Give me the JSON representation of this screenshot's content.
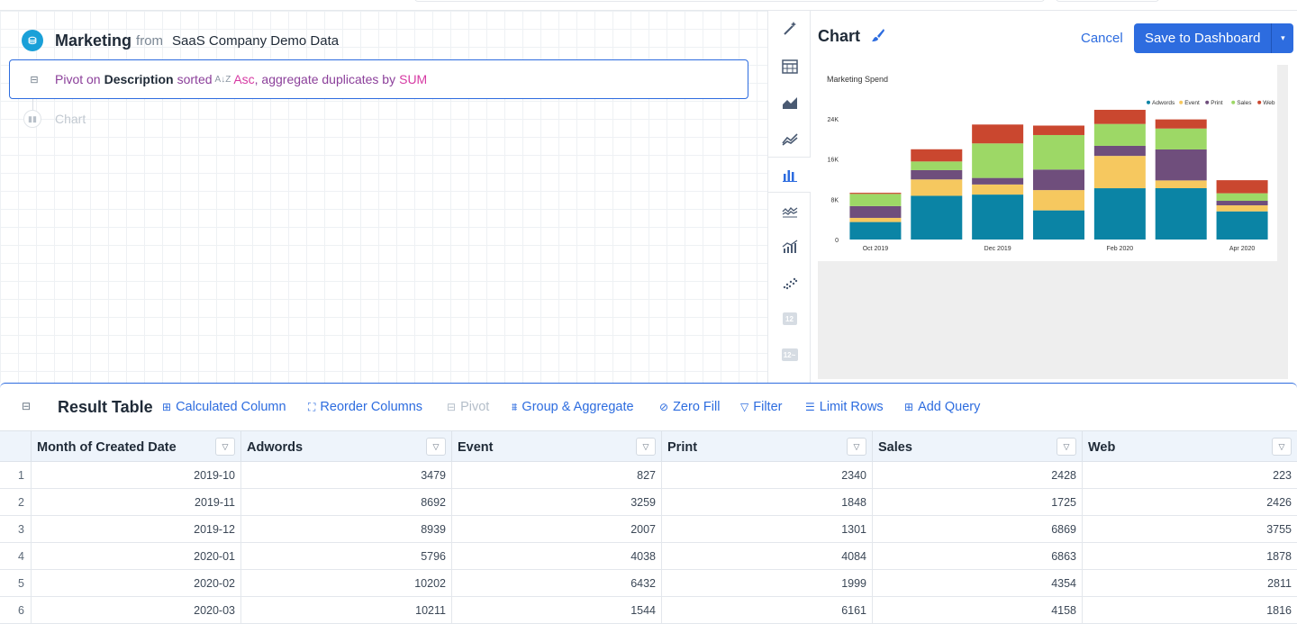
{
  "query": {
    "source_title": "Marketing",
    "source_from": "from",
    "source_name": "SaaS Company Demo Data",
    "pivot_step": {
      "verb": "Pivot on",
      "field": "Description",
      "sorted": "sorted",
      "sort_direction": "Asc",
      "aggregate_text": ", aggregate duplicates by",
      "aggregate_fn": "SUM"
    },
    "chart_step_label": "Chart"
  },
  "chart_types": [
    {
      "name": "magic-wand-icon",
      "active": false
    },
    {
      "name": "table-icon",
      "active": false
    },
    {
      "name": "area-chart-icon",
      "active": false
    },
    {
      "name": "line-chart-icon",
      "active": false
    },
    {
      "name": "bar-chart-icon",
      "active": true
    },
    {
      "name": "stacked-line-icon",
      "active": false
    },
    {
      "name": "combo-chart-icon",
      "active": false
    },
    {
      "name": "scatter-icon",
      "active": false
    },
    {
      "name": "number-icon",
      "label": "12",
      "active": false
    },
    {
      "name": "number-trend-icon",
      "label": "12",
      "active": false
    }
  ],
  "chart_panel": {
    "title": "Chart",
    "cancel_label": "Cancel",
    "save_label": "Save to Dashboard",
    "dropdown_glyph": "▾"
  },
  "chart_data": {
    "type": "bar",
    "stacked": true,
    "title": "Marketing Spend",
    "categories": [
      "Oct 2019",
      "Nov 2019",
      "Dec 2019",
      "Jan 2020",
      "Feb 2020",
      "Mar 2020",
      "Apr 2020"
    ],
    "tick_labels": [
      "Oct 2019",
      "",
      "Dec 2019",
      "",
      "Feb 2020",
      "",
      "Apr 2020"
    ],
    "y_ticks": [
      "0",
      "8K",
      "16K",
      "24K"
    ],
    "y_tick_values": [
      0,
      8000,
      16000,
      24000
    ],
    "ylim": [
      0,
      27000
    ],
    "legend_position": "top-right",
    "grid": false,
    "series": [
      {
        "name": "Adwords",
        "color": "#0b84a5",
        "values": [
          3479,
          8692,
          8939,
          5796,
          10202,
          10211,
          5600
        ]
      },
      {
        "name": "Event",
        "color": "#f6c85f",
        "values": [
          827,
          3259,
          2007,
          4038,
          6432,
          1544,
          1200
        ]
      },
      {
        "name": "Print",
        "color": "#6f4e7c",
        "values": [
          2340,
          1848,
          1301,
          4084,
          1999,
          6161,
          900
        ]
      },
      {
        "name": "Sales",
        "color": "#9dd866",
        "values": [
          2428,
          1725,
          6869,
          6863,
          4354,
          4158,
          1500
        ]
      },
      {
        "name": "Web",
        "color": "#ca472f",
        "values": [
          223,
          2426,
          3755,
          1878,
          2811,
          1816,
          2600
        ]
      }
    ]
  },
  "result": {
    "title": "Result Table",
    "tools": [
      {
        "name": "calculated-column-button",
        "icon": "⊞",
        "label": "Calculated Column",
        "disabled": false
      },
      {
        "name": "reorder-columns-button",
        "icon": "⛶",
        "label": "Reorder Columns",
        "disabled": false
      },
      {
        "name": "pivot-button",
        "icon": "⊟",
        "label": "Pivot",
        "disabled": true
      },
      {
        "name": "group-aggregate-button",
        "icon": "⩩",
        "label": "Group & Aggregate",
        "disabled": false
      },
      {
        "name": "zero-fill-button",
        "icon": "⊘",
        "label": "Zero Fill",
        "disabled": false
      },
      {
        "name": "filter-button",
        "icon": "▽",
        "label": "Filter",
        "disabled": false
      },
      {
        "name": "limit-rows-button",
        "icon": "☰",
        "label": "Limit Rows",
        "disabled": false
      },
      {
        "name": "add-query-button",
        "icon": "⊞",
        "label": "Add Query",
        "disabled": false
      }
    ],
    "columns": [
      "Month of Created Date",
      "Adwords",
      "Event",
      "Print",
      "Sales",
      "Web"
    ],
    "rows": [
      [
        "1",
        "2019-10",
        "3479",
        "827",
        "2340",
        "2428",
        "223"
      ],
      [
        "2",
        "2019-11",
        "8692",
        "3259",
        "1848",
        "1725",
        "2426"
      ],
      [
        "3",
        "2019-12",
        "8939",
        "2007",
        "1301",
        "6869",
        "3755"
      ],
      [
        "4",
        "2020-01",
        "5796",
        "4038",
        "4084",
        "6863",
        "1878"
      ],
      [
        "5",
        "2020-02",
        "10202",
        "6432",
        "1999",
        "4354",
        "2811"
      ],
      [
        "6",
        "2020-03",
        "10211",
        "1544",
        "6161",
        "4158",
        "1816"
      ]
    ]
  }
}
